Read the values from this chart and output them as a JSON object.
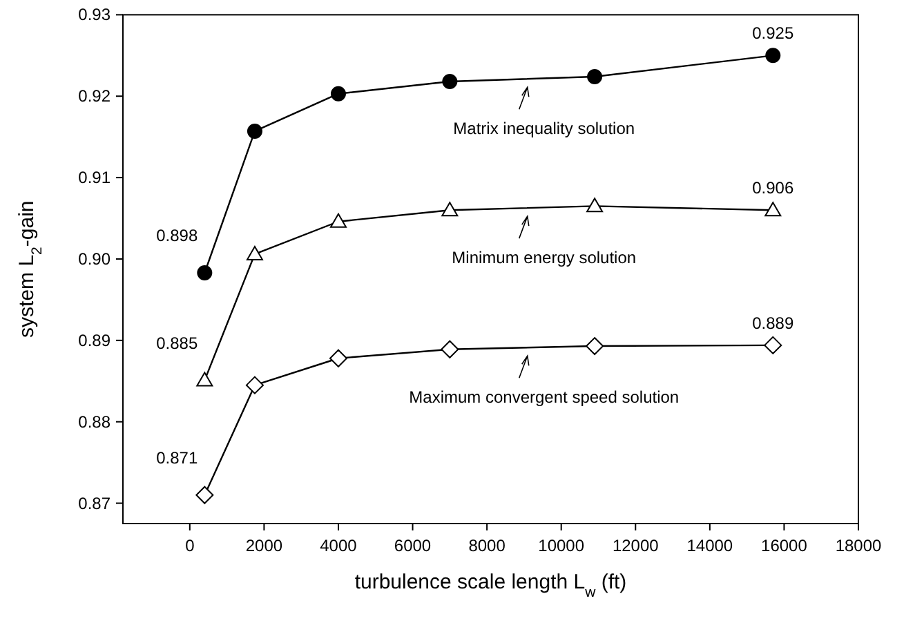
{
  "chart_data": {
    "type": "line",
    "xlabel": "turbulence scale length L$_{w}$ (ft)",
    "ylabel": "system L$_{2}$-gain",
    "x": [
      400,
      1750,
      4000,
      7000,
      10900,
      15700
    ],
    "series": [
      {
        "color": "#000000",
        "marker": "circle",
        "values": [
          0.8983,
          0.9157,
          0.9203,
          0.9218,
          0.9224,
          0.925
        ],
        "value_labels": [
          "0.898",
          null,
          null,
          null,
          null,
          "0.925"
        ]
      },
      {
        "color": "#000000",
        "marker": "triangle",
        "values": [
          0.8851,
          0.9006,
          0.9046,
          0.906,
          0.9065,
          0.906
        ],
        "value_labels": [
          "0.885",
          null,
          null,
          null,
          null,
          "0.906"
        ]
      },
      {
        "color": "#000000",
        "marker": "diamond",
        "values": [
          0.871,
          0.8845,
          0.8878,
          0.8889,
          0.8893,
          0.8894
        ],
        "value_labels": [
          "0.871",
          null,
          null,
          null,
          null,
          "0.889"
        ]
      }
    ],
    "annotations": [
      "Matrix inequality solution",
      "Minimum energy solution",
      "Maximum convergent speed solution"
    ],
    "xlim": [
      -1800,
      18000
    ],
    "xticks": [
      0,
      2000,
      4000,
      6000,
      8000,
      10000,
      12000,
      14000,
      16000,
      18000
    ],
    "ylim": [
      0.8675,
      0.93
    ],
    "yticks": [
      {
        "value": 0.87,
        "label": "0.87"
      },
      {
        "value": 0.88,
        "label": "0.88"
      },
      {
        "value": 0.89,
        "label": "0.89"
      },
      {
        "value": 0.9,
        "label": "0.90"
      },
      {
        "value": 0.91,
        "label": "0.91"
      },
      {
        "value": 0.92,
        "label": "0.92"
      },
      {
        "value": 0.93,
        "label": "0.93"
      }
    ],
    "grid": false
  }
}
